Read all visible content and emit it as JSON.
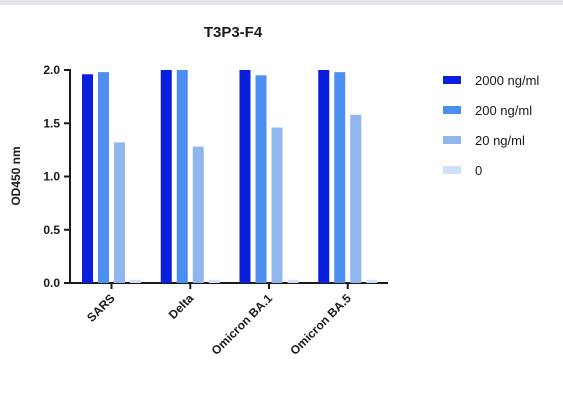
{
  "chart_data": {
    "type": "bar",
    "title": "T3P3-F4",
    "ylabel": "OD450 nm",
    "xlabel": "",
    "ylim": [
      0,
      2.0
    ],
    "yticks": [
      "0.0",
      "0.5",
      "1.0",
      "1.5",
      "2.0"
    ],
    "categories": [
      "SARS",
      "Delta",
      "Omicron BA.1",
      "Omicron BA.5"
    ],
    "series": [
      {
        "name": "2000 ng/ml",
        "color": "#0a1fdc",
        "values": [
          1.96,
          2.0,
          2.0,
          2.0
        ]
      },
      {
        "name": "200 ng/ml",
        "color": "#4d8ff0",
        "values": [
          1.98,
          2.0,
          1.95,
          1.98
        ]
      },
      {
        "name": "20 ng/ml",
        "color": "#8fb7ee",
        "values": [
          1.32,
          1.28,
          1.46,
          1.58
        ]
      },
      {
        "name": "0",
        "color": "#cfdff6",
        "values": [
          0.03,
          0.03,
          0.03,
          0.03
        ]
      }
    ],
    "legend": "right",
    "grid": false
  }
}
